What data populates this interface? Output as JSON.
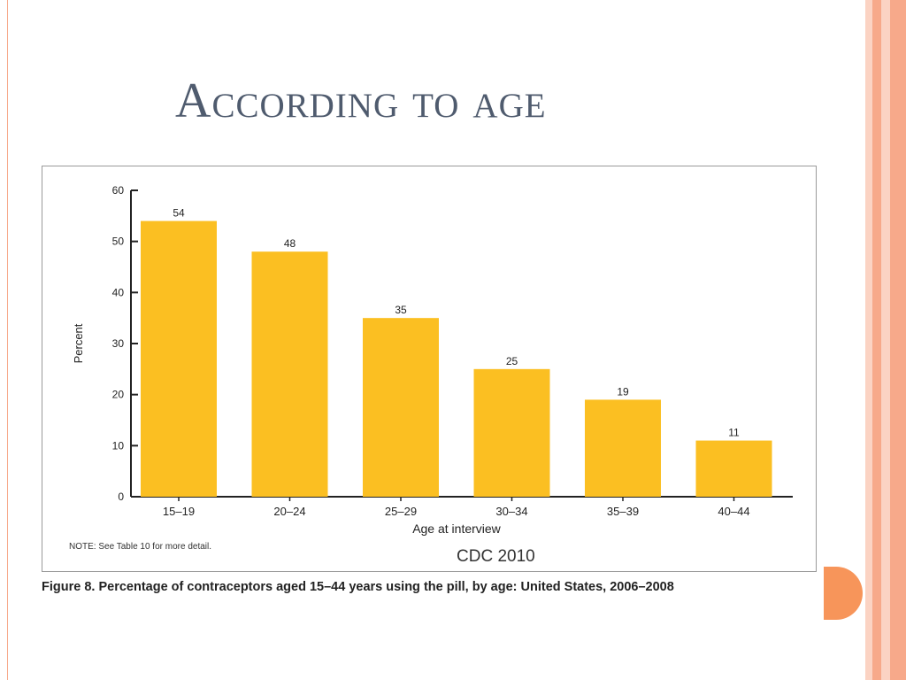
{
  "slide": {
    "title": "According to age",
    "colors": {
      "title": "#4f5b6e",
      "accent": "#f7955a",
      "stripe_light": "#fbd3c3",
      "stripe_mid": "#f7a98a",
      "bar": "#fbbf22"
    }
  },
  "figure": {
    "note": "NOTE: See Table 10 for more detail.",
    "source": "CDC 2010",
    "caption": "Figure 8. Percentage of contraceptors aged 15–44 years using the pill, by age: United States, 2006–2008"
  },
  "chart_data": {
    "type": "bar",
    "categories": [
      "15–19",
      "20–24",
      "25–29",
      "30–34",
      "35–39",
      "40–44"
    ],
    "values": [
      54,
      48,
      35,
      25,
      19,
      11
    ],
    "data_labels": [
      "54",
      "48",
      "35",
      "25",
      "19",
      "11"
    ],
    "xlabel": "Age at interview",
    "ylabel": "Percent",
    "ylim": [
      0,
      60
    ],
    "yticks": [
      0,
      10,
      20,
      30,
      40,
      50,
      60
    ],
    "grid": false,
    "legend": "none"
  }
}
